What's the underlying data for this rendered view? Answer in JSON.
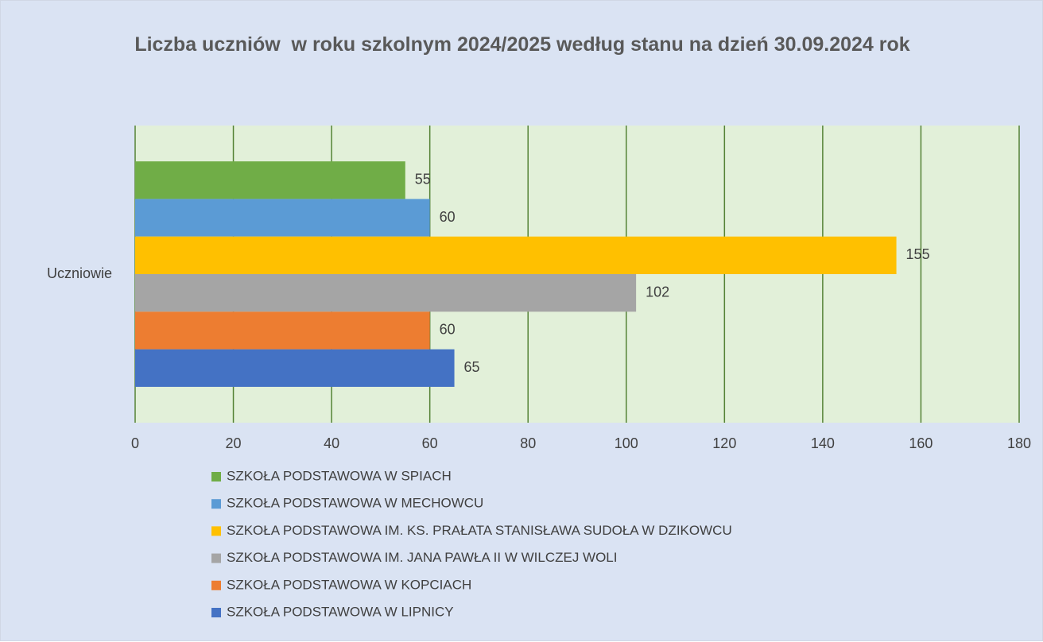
{
  "chart_data": {
    "type": "bar",
    "orientation": "horizontal",
    "title": "Liczba uczniów  w roku szkolnym 2024/2025 według stanu na dzień 30.09.2024 rok",
    "categories": [
      "Uczniowie"
    ],
    "series": [
      {
        "name": "SZKOŁA PODSTAWOWA W SPIACH",
        "color": "#70ad47",
        "values": [
          55
        ]
      },
      {
        "name": "SZKOŁA PODSTAWOWA W MECHOWCU",
        "color": "#5b9bd5",
        "values": [
          60
        ]
      },
      {
        "name": "SZKOŁA PODSTAWOWA IM. KS. PRAŁATA STANISŁAWA SUDOŁA W DZIKOWCU",
        "color": "#ffc000",
        "values": [
          155
        ]
      },
      {
        "name": "SZKOŁA PODSTAWOWA IM. JANA PAWŁA II W WILCZEJ WOLI",
        "color": "#a5a5a5",
        "values": [
          102
        ]
      },
      {
        "name": "SZKOŁA PODSTAWOWA W KOPCIACH",
        "color": "#ed7d31",
        "values": [
          60
        ]
      },
      {
        "name": "SZKOŁA PODSTAWOWA W LIPNICY",
        "color": "#4472c4",
        "values": [
          65
        ]
      }
    ],
    "xlim": [
      0,
      180
    ],
    "xticks": [
      0,
      20,
      40,
      60,
      80,
      100,
      120,
      140,
      160,
      180
    ],
    "grid": true,
    "legend": "bottom"
  }
}
